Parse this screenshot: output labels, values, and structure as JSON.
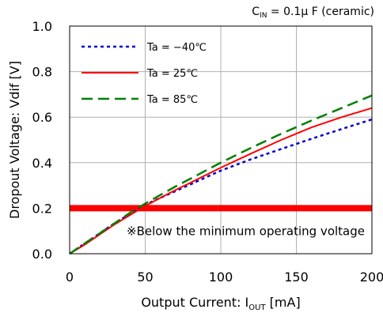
{
  "chart_data": {
    "type": "line",
    "title": "",
    "annotation_top": "C",
    "annotation_top_sub": "IN",
    "annotation_top_rest": " = 0.1μ F (ceramic)",
    "xlabel_main": "Output Current: I",
    "xlabel_sub": "OUT",
    "xlabel_unit": " [mA]",
    "ylabel": "Dropout Voltage: Vdif [V]",
    "xlim": [
      0,
      200
    ],
    "ylim": [
      0,
      1.0
    ],
    "xticks": [
      "0",
      "50",
      "100",
      "150",
      "200"
    ],
    "yticks": [
      "0.0",
      "0.2",
      "0.4",
      "0.6",
      "0.8",
      "1.0"
    ],
    "grid": true,
    "legend_position": "top-left",
    "series": [
      {
        "name": "Ta = −40℃",
        "color": "#0000cc",
        "style": "dotted",
        "points": [
          [
            0,
            0
          ],
          [
            10,
            0.045
          ],
          [
            20,
            0.09
          ],
          [
            30,
            0.135
          ],
          [
            40,
            0.175
          ],
          [
            50,
            0.215
          ],
          [
            60,
            0.245
          ],
          [
            70,
            0.275
          ],
          [
            80,
            0.305
          ],
          [
            90,
            0.335
          ],
          [
            100,
            0.365
          ],
          [
            120,
            0.415
          ],
          [
            140,
            0.46
          ],
          [
            160,
            0.505
          ],
          [
            180,
            0.548
          ],
          [
            200,
            0.59
          ]
        ]
      },
      {
        "name": "Ta = 25℃",
        "color": "#ff0000",
        "style": "solid",
        "points": [
          [
            0,
            0
          ],
          [
            10,
            0.04
          ],
          [
            20,
            0.085
          ],
          [
            30,
            0.13
          ],
          [
            40,
            0.17
          ],
          [
            50,
            0.21
          ],
          [
            60,
            0.245
          ],
          [
            70,
            0.28
          ],
          [
            80,
            0.312
          ],
          [
            90,
            0.345
          ],
          [
            100,
            0.378
          ],
          [
            120,
            0.44
          ],
          [
            140,
            0.5
          ],
          [
            160,
            0.555
          ],
          [
            180,
            0.6
          ],
          [
            200,
            0.64
          ]
        ]
      },
      {
        "name": "Ta = 85℃",
        "color": "#008000",
        "style": "dashed",
        "points": [
          [
            0,
            0
          ],
          [
            10,
            0.045
          ],
          [
            20,
            0.09
          ],
          [
            30,
            0.135
          ],
          [
            40,
            0.18
          ],
          [
            50,
            0.22
          ],
          [
            60,
            0.258
          ],
          [
            70,
            0.295
          ],
          [
            80,
            0.33
          ],
          [
            90,
            0.365
          ],
          [
            100,
            0.4
          ],
          [
            120,
            0.465
          ],
          [
            140,
            0.527
          ],
          [
            160,
            0.585
          ],
          [
            180,
            0.64
          ],
          [
            200,
            0.695
          ]
        ]
      }
    ],
    "threshold": {
      "y": 0.2,
      "color": "#ff0000",
      "label": "※Below the minimum operating voltage"
    }
  }
}
